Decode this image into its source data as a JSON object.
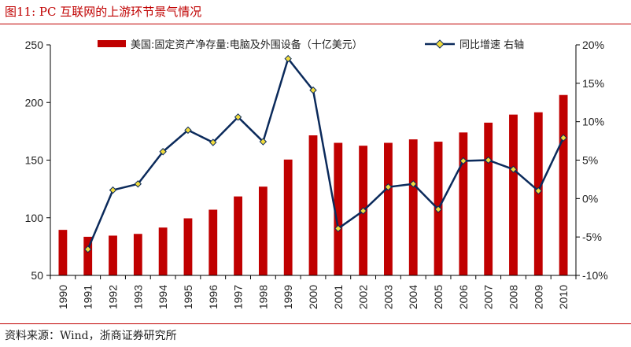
{
  "figure": {
    "title": "图11:   PC 互联网的上游环节景气情况",
    "source": "资料来源：Wind，浙商证券研究所"
  },
  "colors": {
    "bar": "#c00000",
    "line": "#0b2a5b",
    "marker": "#f2dc3c",
    "rule": "#c00000"
  },
  "chart_data": {
    "type": "bar",
    "categories": [
      "1990",
      "1991",
      "1992",
      "1993",
      "1994",
      "1995",
      "1996",
      "1997",
      "1998",
      "1999",
      "2000",
      "2001",
      "2002",
      "2003",
      "2004",
      "2005",
      "2006",
      "2007",
      "2008",
      "2009",
      "2010"
    ],
    "series": [
      {
        "name": "美国:固定资产净存量:电脑及外围设备（十亿美元）",
        "type": "bar",
        "axis": "left",
        "values": [
          89.5,
          83.5,
          84.5,
          86,
          91.5,
          99.5,
          107,
          118.5,
          127,
          150.5,
          171.5,
          165,
          162.5,
          165,
          168,
          166,
          174,
          182.5,
          189.5,
          191.5,
          206.5
        ]
      },
      {
        "name": "同比增速 右轴",
        "type": "line",
        "axis": "right",
        "values": [
          null,
          -6.6,
          1.1,
          1.9,
          6.1,
          8.9,
          7.3,
          10.6,
          7.4,
          18.2,
          14.1,
          -3.9,
          -1.6,
          1.5,
          1.9,
          -1.4,
          4.9,
          5.0,
          3.8,
          1.0,
          7.9
        ]
      }
    ],
    "ylim_left": [
      50,
      250
    ],
    "yticks_left": [
      50,
      100,
      150,
      200,
      250
    ],
    "ylim_right": [
      -10,
      20
    ],
    "yticks_right": [
      "-10%",
      "-5%",
      "0%",
      "5%",
      "10%",
      "15%",
      "20%"
    ],
    "legend": "top",
    "grid": false
  }
}
